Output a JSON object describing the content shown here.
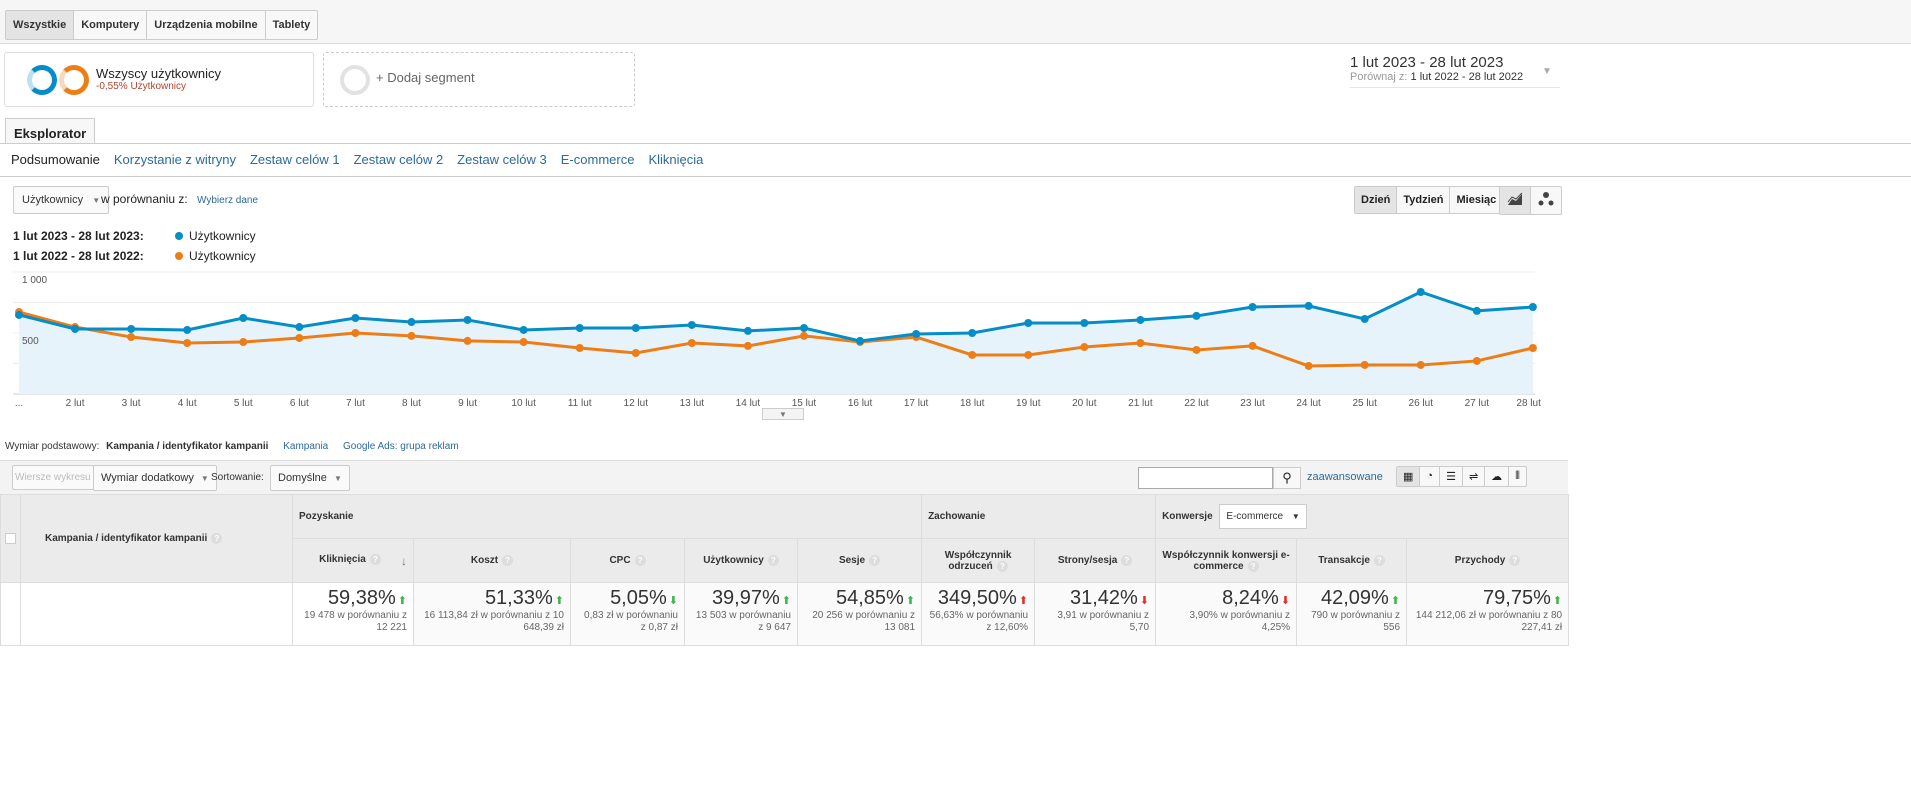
{
  "devices": [
    "Wszystkie",
    "Komputery",
    "Urządzenia mobilne",
    "Tablety"
  ],
  "segment": {
    "name": "Wszyscy użytkownicy",
    "sub": "-0,55% Użytkownicy",
    "add": "+ Dodaj segment"
  },
  "date": {
    "range": "1 lut 2023 - 28 lut 2023",
    "compare_label": "Porównaj z:",
    "compare_range": "1 lut 2022 - 28 lut 2022"
  },
  "explorer_tab": "Eksplorator",
  "subtabs": [
    "Podsumowanie",
    "Korzystanie z witryny",
    "Zestaw celów 1",
    "Zestaw celów 2",
    "Zestaw celów 3",
    "E-commerce",
    "Kliknięcia"
  ],
  "controls": {
    "metric": "Użytkownicy",
    "compare": "w porównaniu z:",
    "choose": "Wybierz dane",
    "periods": [
      "Dzień",
      "Tydzień",
      "Miesiąc"
    ]
  },
  "colors": {
    "blue": "#058dc7",
    "orange": "#ed7e17"
  },
  "chart_data": {
    "type": "line",
    "legend": [
      {
        "period": "1 lut 2023 - 28 lut 2023:",
        "name": "Użytkownicy"
      },
      {
        "period": "1 lut 2022 - 28 lut 2022:",
        "name": "Użytkownicy"
      }
    ],
    "x": [
      "...",
      "2 lut",
      "3 lut",
      "4 lut",
      "5 lut",
      "6 lut",
      "7 lut",
      "8 lut",
      "9 lut",
      "10 lut",
      "11 lut",
      "12 lut",
      "13 lut",
      "14 lut",
      "15 lut",
      "16 lut",
      "17 lut",
      "18 lut",
      "19 lut",
      "20 lut",
      "21 lut",
      "22 lut",
      "23 lut",
      "24 lut",
      "25 lut",
      "26 lut",
      "27 lut",
      "28 lut"
    ],
    "yticks": [
      "1 000",
      "500"
    ],
    "ylim": [
      0,
      1000
    ],
    "series": [
      {
        "name": "Użytkownicy 2023",
        "values": [
          648,
          533,
          533,
          525,
          623,
          549,
          623,
          590,
          607,
          525,
          541,
          541,
          566,
          517,
          541,
          435,
          492,
          500,
          582,
          582,
          607,
          640,
          713,
          722,
          615,
          836,
          681,
          713
        ]
      },
      {
        "name": "Użytkownicy 2022",
        "values": [
          672,
          549,
          467,
          418,
          426,
          459,
          500,
          476,
          435,
          426,
          377,
          336,
          418,
          394,
          476,
          426,
          467,
          320,
          320,
          385,
          418,
          361,
          394,
          230,
          238,
          238,
          271,
          377
        ]
      }
    ]
  },
  "dimension": {
    "label": "Wymiar podstawowy:",
    "active": "Kampania / identyfikator kampanii",
    "links": [
      "Kampania",
      "Google Ads: grupa reklam"
    ]
  },
  "toolbar": {
    "plot_rows": "Wiersze wykresu",
    "secondary": "Wymiar dodatkowy",
    "sort_label": "Sortowanie:",
    "sort": "Domyślne",
    "search_value": "",
    "advanced": "zaawansowane"
  },
  "table": {
    "first_col": "Kampania / identyfikator kampanii",
    "groups": {
      "acq": "Pozyskanie",
      "beh": "Zachowanie",
      "conv": "Konwersje",
      "conv_select": "E-commerce"
    },
    "columns": [
      {
        "label": "Kliknięcia",
        "pct": "59,38%",
        "dir": "up",
        "good": true,
        "cmp": "19 478 w porównaniu z 12 221"
      },
      {
        "label": "Koszt",
        "pct": "51,33%",
        "dir": "up",
        "good": true,
        "cmp": "16 113,84 zł w porównaniu z 10 648,39 zł"
      },
      {
        "label": "CPC",
        "pct": "5,05%",
        "dir": "down",
        "good": true,
        "cmp": "0,83 zł w porównaniu z 0,87 zł"
      },
      {
        "label": "Użytkownicy",
        "pct": "39,97%",
        "dir": "up",
        "good": true,
        "cmp": "13 503 w porównaniu z 9 647"
      },
      {
        "label": "Sesje",
        "pct": "54,85%",
        "dir": "up",
        "good": true,
        "cmp": "20 256 w porównaniu z 13 081"
      },
      {
        "label": "Współczynnik odrzuceń",
        "pct": "349,50%",
        "dir": "up",
        "good": false,
        "cmp": "56,63% w porównaniu z 12,60%"
      },
      {
        "label": "Strony/sesja",
        "pct": "31,42%",
        "dir": "down",
        "good": false,
        "cmp": "3,91 w porównaniu z 5,70"
      },
      {
        "label": "Współczynnik konwersji e-commerce",
        "pct": "8,24%",
        "dir": "down",
        "good": false,
        "cmp": "3,90% w porównaniu z 4,25%"
      },
      {
        "label": "Transakcje",
        "pct": "42,09%",
        "dir": "up",
        "good": true,
        "cmp": "790 w porównaniu z 556"
      },
      {
        "label": "Przychody",
        "pct": "79,75%",
        "dir": "up",
        "good": true,
        "cmp": "144 212,06 zł w porównaniu z 80 227,41 zł"
      }
    ]
  }
}
